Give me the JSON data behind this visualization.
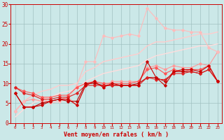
{
  "xlabel": "Vent moyen/en rafales ( km/h )",
  "background_color": "#cbe8e8",
  "grid_color": "#a0c0c0",
  "x_values": [
    0,
    1,
    2,
    3,
    4,
    5,
    6,
    7,
    8,
    9,
    10,
    11,
    12,
    13,
    14,
    15,
    16,
    17,
    18,
    19,
    20,
    21,
    22,
    23
  ],
  "ylim": [
    0,
    30
  ],
  "xlim": [
    -0.5,
    23.5
  ],
  "lines": [
    {
      "y": [
        7.5,
        4.0,
        4.0,
        4.5,
        5.5,
        6.0,
        6.0,
        4.5,
        9.5,
        10.5,
        9.0,
        10.0,
        9.5,
        9.5,
        9.5,
        15.5,
        11.5,
        9.5,
        13.0,
        13.5,
        13.5,
        13.0,
        14.5,
        10.5
      ],
      "color": "#cc0000",
      "linewidth": 0.8,
      "marker": "D",
      "markersize": 1.8,
      "zorder": 5
    },
    {
      "y": [
        7.5,
        4.0,
        4.0,
        5.0,
        5.5,
        6.0,
        5.5,
        5.5,
        10.0,
        10.0,
        9.5,
        9.5,
        9.5,
        9.5,
        10.0,
        11.5,
        11.5,
        10.5,
        13.0,
        13.0,
        13.0,
        12.5,
        13.5,
        10.5
      ],
      "color": "#bb0000",
      "linewidth": 0.8,
      "marker": "D",
      "markersize": 1.8,
      "zorder": 4
    },
    {
      "y": [
        9.0,
        7.5,
        7.0,
        6.0,
        6.0,
        6.5,
        6.5,
        7.5,
        9.5,
        9.5,
        9.5,
        9.5,
        9.5,
        9.5,
        9.5,
        11.5,
        11.0,
        11.0,
        12.5,
        12.5,
        13.0,
        12.5,
        13.5,
        10.5
      ],
      "color": "#dd2222",
      "linewidth": 0.8,
      "marker": "D",
      "markersize": 1.8,
      "zorder": 4
    },
    {
      "y": [
        9.0,
        8.0,
        7.5,
        6.5,
        6.5,
        7.0,
        7.0,
        9.0,
        10.0,
        10.5,
        10.0,
        10.0,
        10.0,
        10.0,
        10.5,
        13.5,
        14.0,
        12.5,
        13.5,
        13.0,
        13.5,
        13.5,
        14.5,
        10.5
      ],
      "color": "#ff5555",
      "linewidth": 0.8,
      "marker": "D",
      "markersize": 1.8,
      "zorder": 3
    },
    {
      "y": [
        3.0,
        5.5,
        6.0,
        5.5,
        5.5,
        6.0,
        6.5,
        4.5,
        9.5,
        10.5,
        9.0,
        10.5,
        10.5,
        10.5,
        10.5,
        14.0,
        14.5,
        13.5,
        14.5,
        14.0,
        14.0,
        15.0,
        14.5,
        18.0
      ],
      "color": "#ff9999",
      "linewidth": 0.8,
      "marker": "D",
      "markersize": 1.8,
      "zorder": 2
    },
    {
      "y": [
        3.0,
        5.5,
        7.0,
        6.5,
        5.0,
        5.5,
        6.0,
        9.5,
        15.5,
        15.5,
        22.0,
        21.5,
        22.0,
        22.5,
        22.0,
        29.0,
        26.5,
        24.0,
        23.5,
        23.5,
        23.0,
        23.0,
        19.0,
        18.0
      ],
      "color": "#ffbbbb",
      "linewidth": 0.8,
      "marker": "D",
      "markersize": 1.8,
      "zorder": 2
    },
    {
      "y": [
        3.0,
        5.5,
        7.0,
        8.0,
        8.5,
        9.5,
        9.5,
        10.0,
        13.0,
        14.0,
        15.5,
        16.0,
        16.5,
        17.0,
        17.5,
        19.5,
        20.5,
        20.5,
        21.0,
        21.5,
        22.0,
        22.5,
        22.5,
        23.0
      ],
      "color": "#ffcccc",
      "linewidth": 1.0,
      "marker": null,
      "markersize": 0,
      "zorder": 1
    },
    {
      "y": [
        1.5,
        3.5,
        5.0,
        6.0,
        6.5,
        7.5,
        8.0,
        8.5,
        10.5,
        11.5,
        12.5,
        13.0,
        13.5,
        14.0,
        14.5,
        16.0,
        17.0,
        17.5,
        18.0,
        18.5,
        19.0,
        19.5,
        19.5,
        20.0
      ],
      "color": "#ffdddd",
      "linewidth": 1.0,
      "marker": null,
      "markersize": 0,
      "zorder": 1
    }
  ],
  "tick_labels": [
    "0",
    "1",
    "2",
    "3",
    "4",
    "5",
    "6",
    "7",
    "8",
    "9",
    "10",
    "11",
    "12",
    "13",
    "14",
    "15",
    "16",
    "17",
    "18",
    "19",
    "20",
    "21",
    "22",
    "23"
  ],
  "yticks": [
    0,
    5,
    10,
    15,
    20,
    25,
    30
  ]
}
